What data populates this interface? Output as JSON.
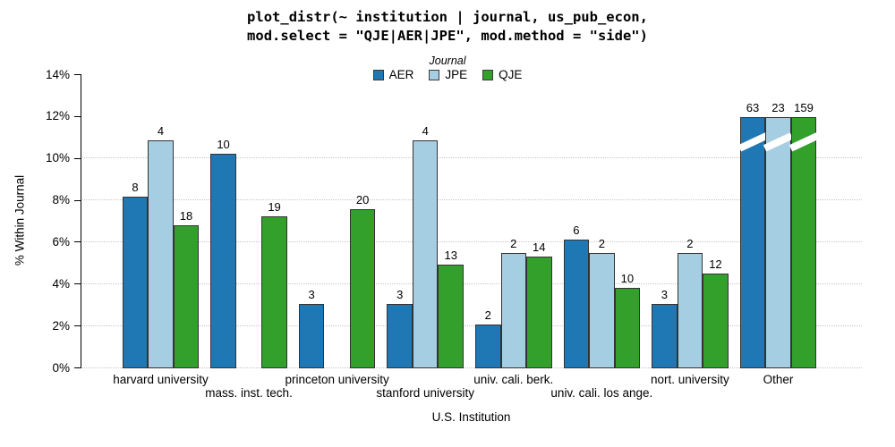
{
  "title": {
    "line1": "plot_distr(~ institution | journal, us_pub_econ,",
    "line2": "mod.select = \"QJE|AER|JPE\", mod.method = \"side\")"
  },
  "colors": {
    "aer": "#1f78b4",
    "jpe": "#a6cee3",
    "qje": "#33a02c",
    "bar_border": "#333333",
    "gridline": "#c6c6c6",
    "axis": "#000000"
  },
  "chart_data": {
    "type": "bar",
    "title": "plot_distr(~ institution | journal, us_pub_econ, mod.select = \"QJE|AER|JPE\", mod.method = \"side\")",
    "legend_title": "Journal",
    "legend_position": "top-center",
    "xlabel": "U.S. Institution",
    "ylabel": "% Within Journal",
    "ylim": [
      0,
      14
    ],
    "y_tick_format": "percent",
    "grid": "dotted horizontal, only from 0% to 10%",
    "y_ticks": [
      {
        "value": 0,
        "label": "0%",
        "gridline": true
      },
      {
        "value": 2,
        "label": "2%",
        "gridline": true
      },
      {
        "value": 4,
        "label": "4%",
        "gridline": true
      },
      {
        "value": 6,
        "label": "6%",
        "gridline": true
      },
      {
        "value": 8,
        "label": "8%",
        "gridline": true
      },
      {
        "value": 10,
        "label": "10%",
        "gridline": true
      },
      {
        "value": 12,
        "label": "12%",
        "gridline": false
      },
      {
        "value": 14,
        "label": "14%",
        "gridline": false
      }
    ],
    "series": [
      {
        "name": "AER",
        "color": "#1f78b4"
      },
      {
        "name": "JPE",
        "color": "#a6cee3"
      },
      {
        "name": "QJE",
        "color": "#33a02c"
      }
    ],
    "categories": [
      {
        "label": "harvard university",
        "label_row": 1,
        "bars": [
          {
            "series": "AER",
            "count": 8,
            "pct": 8.15
          },
          {
            "series": "JPE",
            "count": 4,
            "pct": 10.85
          },
          {
            "series": "QJE",
            "count": 18,
            "pct": 6.8
          }
        ]
      },
      {
        "label": "mass. inst. tech.",
        "label_row": 2,
        "bars": [
          {
            "series": "AER",
            "count": 10,
            "pct": 10.2
          },
          null,
          {
            "series": "QJE",
            "count": 19,
            "pct": 7.2
          }
        ]
      },
      {
        "label": "princeton university",
        "label_row": 1,
        "bars": [
          {
            "series": "AER",
            "count": 3,
            "pct": 3.05
          },
          null,
          {
            "series": "QJE",
            "count": 20,
            "pct": 7.55
          }
        ]
      },
      {
        "label": "stanford university",
        "label_row": 2,
        "bars": [
          {
            "series": "AER",
            "count": 3,
            "pct": 3.05
          },
          {
            "series": "JPE",
            "count": 4,
            "pct": 10.85
          },
          {
            "series": "QJE",
            "count": 13,
            "pct": 4.9
          }
        ]
      },
      {
        "label": "univ. cali. berk.",
        "label_row": 1,
        "bars": [
          {
            "series": "AER",
            "count": 2,
            "pct": 2.05
          },
          {
            "series": "JPE",
            "count": 2,
            "pct": 5.45
          },
          {
            "series": "QJE",
            "count": 14,
            "pct": 5.3
          }
        ]
      },
      {
        "label": "univ. cali. los ange.",
        "label_row": 2,
        "bars": [
          {
            "series": "AER",
            "count": 6,
            "pct": 6.1
          },
          {
            "series": "JPE",
            "count": 2,
            "pct": 5.45
          },
          {
            "series": "QJE",
            "count": 10,
            "pct": 3.8
          }
        ]
      },
      {
        "label": "nort. university",
        "label_row": 1,
        "bars": [
          {
            "series": "AER",
            "count": 3,
            "pct": 3.05
          },
          {
            "series": "JPE",
            "count": 2,
            "pct": 5.45
          },
          {
            "series": "QJE",
            "count": 12,
            "pct": 4.5
          }
        ]
      },
      {
        "label": "Other",
        "label_row": 1,
        "bars": [
          {
            "series": "AER",
            "count": 63,
            "pct": 11.95,
            "broken": true
          },
          {
            "series": "JPE",
            "count": 23,
            "pct": 11.95,
            "broken": true
          },
          {
            "series": "QJE",
            "count": 159,
            "pct": 11.95,
            "broken": true
          }
        ]
      }
    ]
  }
}
